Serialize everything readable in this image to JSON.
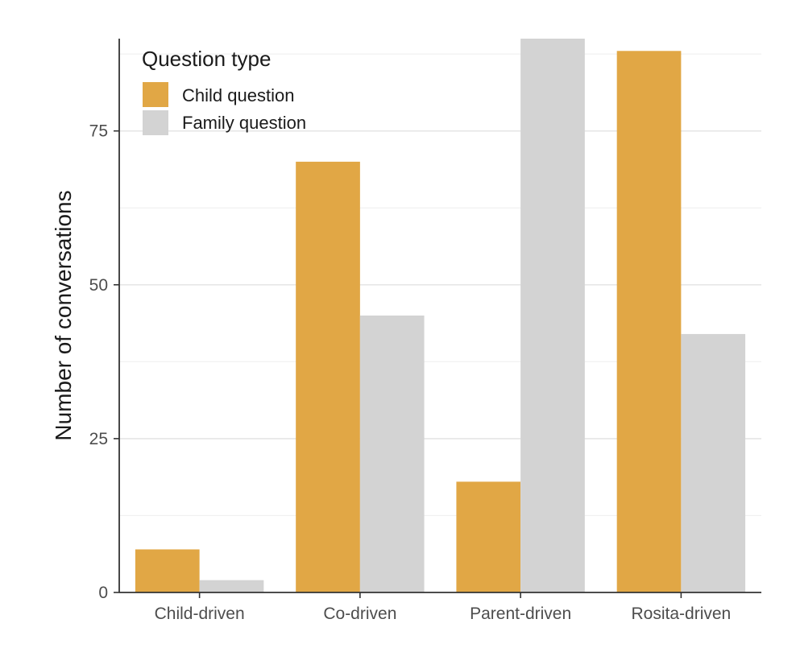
{
  "chart_data": {
    "type": "bar",
    "title": "",
    "xlabel": "",
    "ylabel": "Number of conversations",
    "categories": [
      "Child-driven",
      "Co-driven",
      "Parent-driven",
      "Rosita-driven"
    ],
    "series": [
      {
        "name": "Child question",
        "color": "#E1A745",
        "values": [
          7,
          70,
          18,
          88
        ]
      },
      {
        "name": "Family question",
        "color": "#D3D3D3",
        "values": [
          2,
          45,
          90,
          42
        ]
      }
    ],
    "ylim": [
      0,
      90
    ],
    "yticks": [
      0,
      25,
      50,
      75
    ],
    "y_minor_gridlines": [
      12.5,
      37.5,
      62.5,
      87.5
    ],
    "grid": true,
    "legend": {
      "title": "Question type",
      "placement": "top-left",
      "entries": [
        "Child question",
        "Family question"
      ]
    }
  }
}
